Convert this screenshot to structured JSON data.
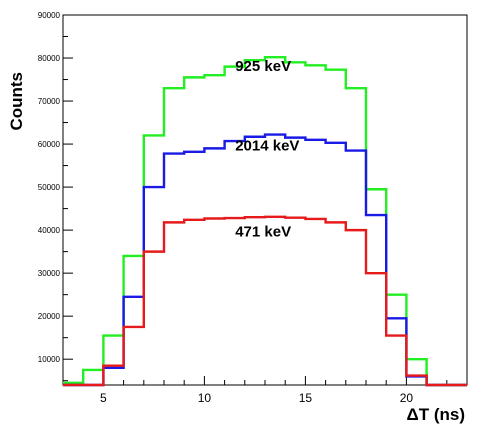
{
  "chart_data": {
    "type": "line",
    "style": "histogram-step",
    "title": "",
    "xlabel": "ΔT (ns)",
    "ylabel": "Counts",
    "xlim": [
      3,
      23
    ],
    "ylim": [
      4000,
      90000
    ],
    "xticks": [
      5,
      10,
      15,
      20
    ],
    "yticks": [
      10000,
      20000,
      30000,
      40000,
      50000,
      60000,
      70000,
      80000,
      90000
    ],
    "grid": false,
    "bin_edges": [
      3,
      4,
      5,
      6,
      7,
      8,
      9,
      10,
      11,
      12,
      13,
      14,
      15,
      16,
      17,
      18,
      19,
      20,
      21,
      22,
      23
    ],
    "series": [
      {
        "name": "925 keV",
        "color": "#22ee22",
        "label_at": [
          14,
          77000
        ],
        "values": [
          4500,
          7500,
          15500,
          34000,
          62000,
          73000,
          75500,
          76000,
          78000,
          79500,
          80200,
          79000,
          78300,
          77300,
          73000,
          49500,
          25000,
          10000,
          4000,
          4000
        ]
      },
      {
        "name": "2014 keV",
        "color": "#1a1ae6",
        "label_at": [
          14,
          58500
        ],
        "values": [
          4000,
          4000,
          8000,
          24500,
          50000,
          57800,
          58200,
          59000,
          60700,
          61700,
          62200,
          61500,
          61000,
          60300,
          58500,
          43500,
          19500,
          6000,
          4000,
          4000
        ]
      },
      {
        "name": "471 keV",
        "color": "#e61a1a",
        "label_at": [
          14,
          38500
        ],
        "values": [
          4000,
          4000,
          8500,
          17500,
          35000,
          41800,
          42400,
          42700,
          42800,
          43000,
          43100,
          42900,
          42600,
          41800,
          40000,
          30000,
          15500,
          6200,
          4000,
          4000
        ]
      }
    ]
  }
}
